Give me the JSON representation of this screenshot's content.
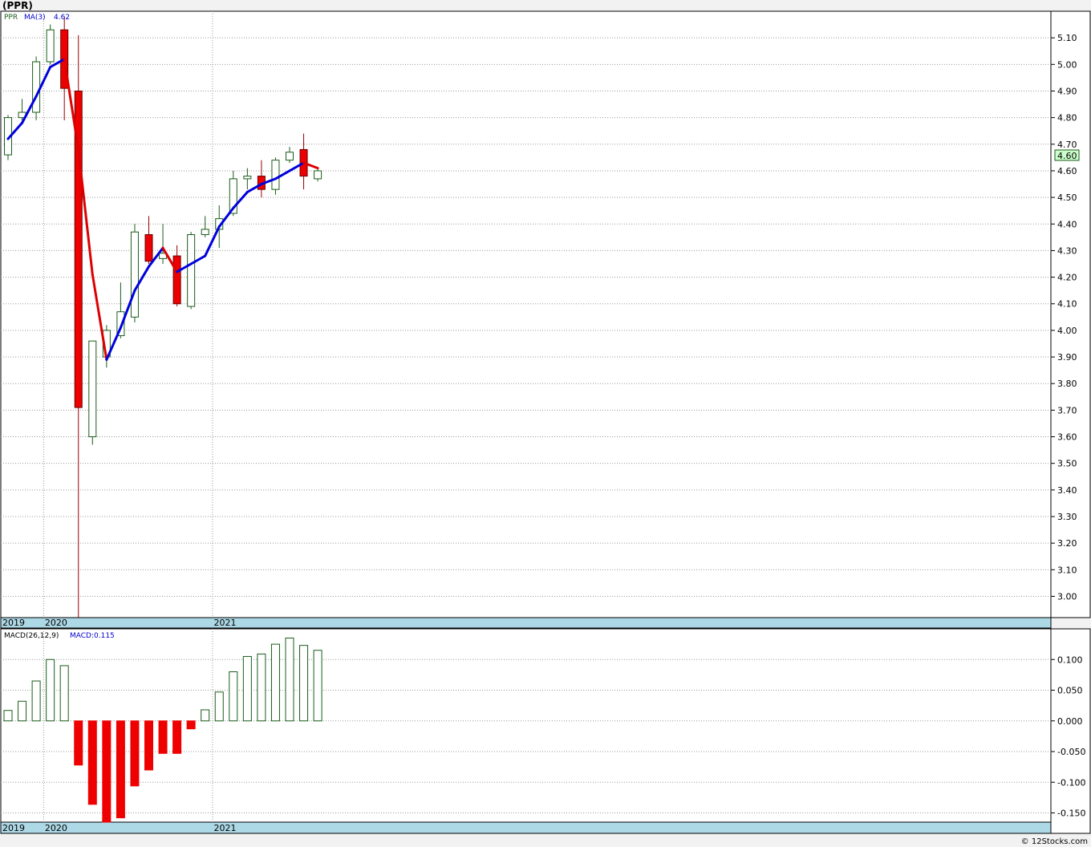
{
  "header": {
    "title": "(PPR)"
  },
  "price_legend": {
    "symbol": "PPR",
    "ma_label": "MA(3)",
    "ma_value": "4.62"
  },
  "macd_legend": {
    "label": "MACD(26,12,9)",
    "value_label": "MACD:0.115"
  },
  "last_price_badge": "4.60",
  "footer": {
    "copyright": "© 12Stocks.com"
  },
  "colors": {
    "up_candle": "#1a5c1a",
    "down_candle": "#ee0000",
    "ma_rising": "#0000dd",
    "ma_falling": "#dd0000",
    "axis_band": "#add8e6",
    "badge_bg": "#ccffcc"
  },
  "chart_data": [
    {
      "type": "candlestick",
      "title": "(PPR)",
      "period": "monthly",
      "x_axis_labels": [
        {
          "label": "2019",
          "bar_index": 0
        },
        {
          "label": "2020",
          "bar_index": 3
        },
        {
          "label": "2021",
          "bar_index": 15
        }
      ],
      "ylim": [
        2.92,
        5.2
      ],
      "yticks": [
        "3.00",
        "3.10",
        "3.20",
        "3.30",
        "3.40",
        "3.50",
        "3.60",
        "3.70",
        "3.80",
        "3.90",
        "4.00",
        "4.10",
        "4.20",
        "4.30",
        "4.40",
        "4.50",
        "4.60",
        "4.70",
        "4.80",
        "4.90",
        "5.00",
        "5.10"
      ],
      "grid": true,
      "candles": [
        {
          "o": 4.66,
          "h": 4.81,
          "l": 4.64,
          "c": 4.8
        },
        {
          "o": 4.8,
          "h": 4.87,
          "l": 4.79,
          "c": 4.82
        },
        {
          "o": 4.82,
          "h": 5.03,
          "l": 4.79,
          "c": 5.01
        },
        {
          "o": 5.01,
          "h": 5.15,
          "l": 5.0,
          "c": 5.13
        },
        {
          "o": 5.13,
          "h": 5.18,
          "l": 4.79,
          "c": 4.91
        },
        {
          "o": 4.9,
          "h": 5.11,
          "l": 2.92,
          "c": 3.71
        },
        {
          "o": 3.6,
          "h": 3.96,
          "l": 3.57,
          "c": 3.96
        },
        {
          "o": 3.9,
          "h": 4.02,
          "l": 3.86,
          "c": 4.0
        },
        {
          "o": 3.98,
          "h": 4.18,
          "l": 3.97,
          "c": 4.07
        },
        {
          "o": 4.05,
          "h": 4.4,
          "l": 4.03,
          "c": 4.37
        },
        {
          "o": 4.36,
          "h": 4.43,
          "l": 4.25,
          "c": 4.26
        },
        {
          "o": 4.27,
          "h": 4.4,
          "l": 4.25,
          "c": 4.29
        },
        {
          "o": 4.28,
          "h": 4.32,
          "l": 4.09,
          "c": 4.1
        },
        {
          "o": 4.09,
          "h": 4.37,
          "l": 4.08,
          "c": 4.36
        },
        {
          "o": 4.36,
          "h": 4.43,
          "l": 4.35,
          "c": 4.38
        },
        {
          "o": 4.38,
          "h": 4.47,
          "l": 4.31,
          "c": 4.42
        },
        {
          "o": 4.44,
          "h": 4.6,
          "l": 4.43,
          "c": 4.57
        },
        {
          "o": 4.57,
          "h": 4.61,
          "l": 4.53,
          "c": 4.58
        },
        {
          "o": 4.58,
          "h": 4.64,
          "l": 4.5,
          "c": 4.53
        },
        {
          "o": 4.53,
          "h": 4.65,
          "l": 4.51,
          "c": 4.64
        },
        {
          "o": 4.64,
          "h": 4.69,
          "l": 4.63,
          "c": 4.67
        },
        {
          "o": 4.68,
          "h": 4.74,
          "l": 4.53,
          "c": 4.58
        },
        {
          "o": 4.57,
          "h": 4.61,
          "l": 4.56,
          "c": 4.6
        }
      ],
      "ma3": [
        {
          "i": 0,
          "v": 4.72
        },
        {
          "i": 1,
          "v": 4.78
        },
        {
          "i": 2,
          "v": 4.88
        },
        {
          "i": 3,
          "v": 4.99
        },
        {
          "i": 4,
          "v": 5.02
        },
        {
          "i": 5,
          "v": 4.68
        },
        {
          "i": 6,
          "v": 4.21
        },
        {
          "i": 7,
          "v": 3.89
        },
        {
          "i": 8,
          "v": 4.01
        },
        {
          "i": 9,
          "v": 4.15
        },
        {
          "i": 10,
          "v": 4.24
        },
        {
          "i": 11,
          "v": 4.31
        },
        {
          "i": 12,
          "v": 4.22
        },
        {
          "i": 13,
          "v": 4.25
        },
        {
          "i": 14,
          "v": 4.28
        },
        {
          "i": 15,
          "v": 4.39
        },
        {
          "i": 16,
          "v": 4.46
        },
        {
          "i": 17,
          "v": 4.52
        },
        {
          "i": 18,
          "v": 4.55
        },
        {
          "i": 19,
          "v": 4.57
        },
        {
          "i": 20,
          "v": 4.6
        },
        {
          "i": 21,
          "v": 4.63
        },
        {
          "i": 22,
          "v": 4.61
        }
      ]
    },
    {
      "type": "bar",
      "title": "MACD(26,12,9)",
      "ylim": [
        -0.165,
        0.15
      ],
      "yticks": [
        "0.100",
        "0.050",
        "0.000",
        "-0.050",
        "-0.100",
        "-0.150"
      ],
      "grid": true,
      "x_axis_labels": [
        {
          "label": "2019",
          "bar_index": 0
        },
        {
          "label": "2020",
          "bar_index": 3
        },
        {
          "label": "2021",
          "bar_index": 15
        }
      ],
      "values": [
        0.017,
        0.032,
        0.065,
        0.1,
        0.09,
        -0.072,
        -0.136,
        -0.165,
        -0.158,
        -0.106,
        -0.08,
        -0.053,
        -0.053,
        -0.013,
        0.018,
        0.047,
        0.08,
        0.105,
        0.109,
        0.125,
        0.135,
        0.123,
        0.115
      ]
    }
  ]
}
